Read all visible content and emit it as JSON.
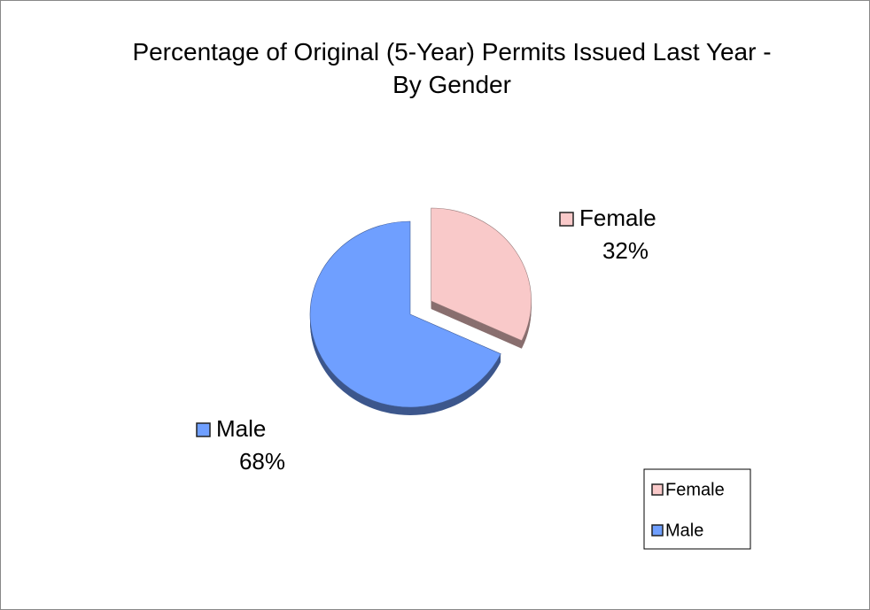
{
  "chart_data": {
    "type": "pie",
    "title": "Percentage of Original (5-Year) Permits Issued Last Year - By Gender",
    "categories": [
      "Female",
      "Male"
    ],
    "values": [
      32,
      68
    ],
    "value_labels": [
      "32%",
      "68%"
    ],
    "colors": [
      "#f9c9c9",
      "#6f9fff"
    ],
    "exploded": [
      true,
      false
    ],
    "legend": "bottom-right"
  }
}
